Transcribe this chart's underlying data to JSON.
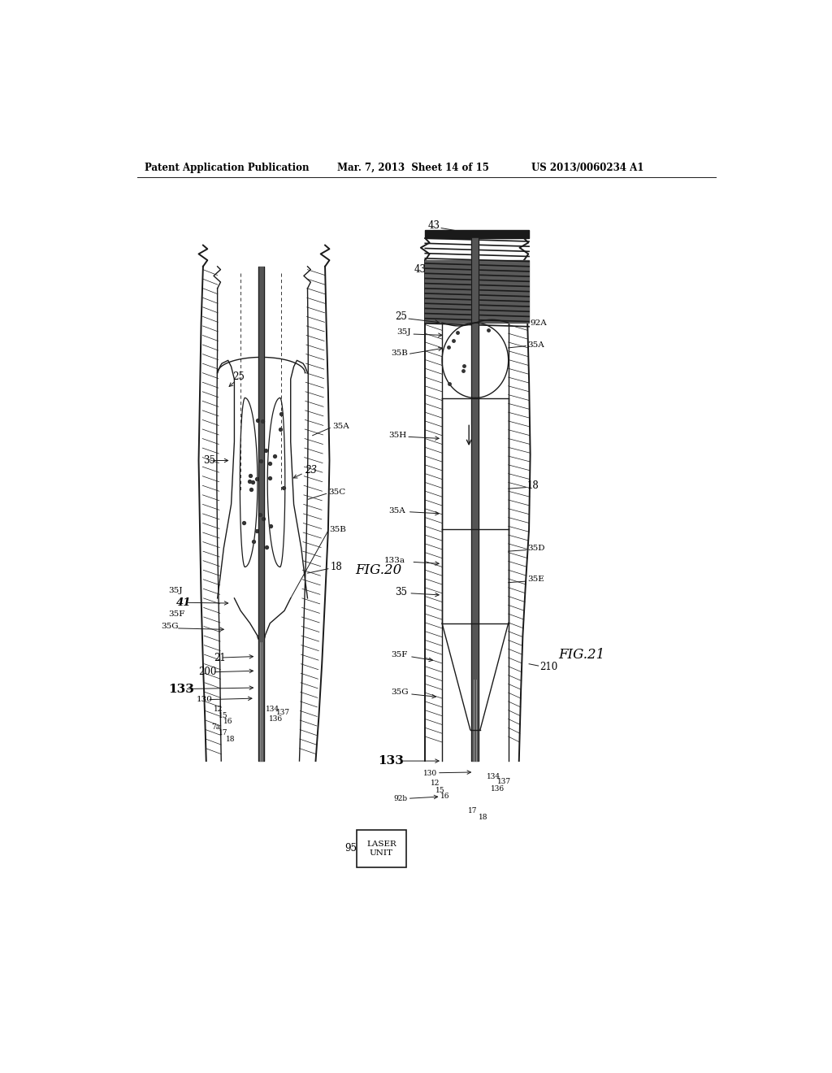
{
  "title_left": "Patent Application Publication",
  "title_center": "Mar. 7, 2013  Sheet 14 of 15",
  "title_right": "US 2013/0060234 A1",
  "fig20_label": "FIG.20",
  "fig21_label": "FIG.21",
  "bg_color": "#ffffff",
  "line_color": "#1a1a1a",
  "dark_gray": "#444444",
  "med_gray": "#888888",
  "light_gray": "#cccccc"
}
